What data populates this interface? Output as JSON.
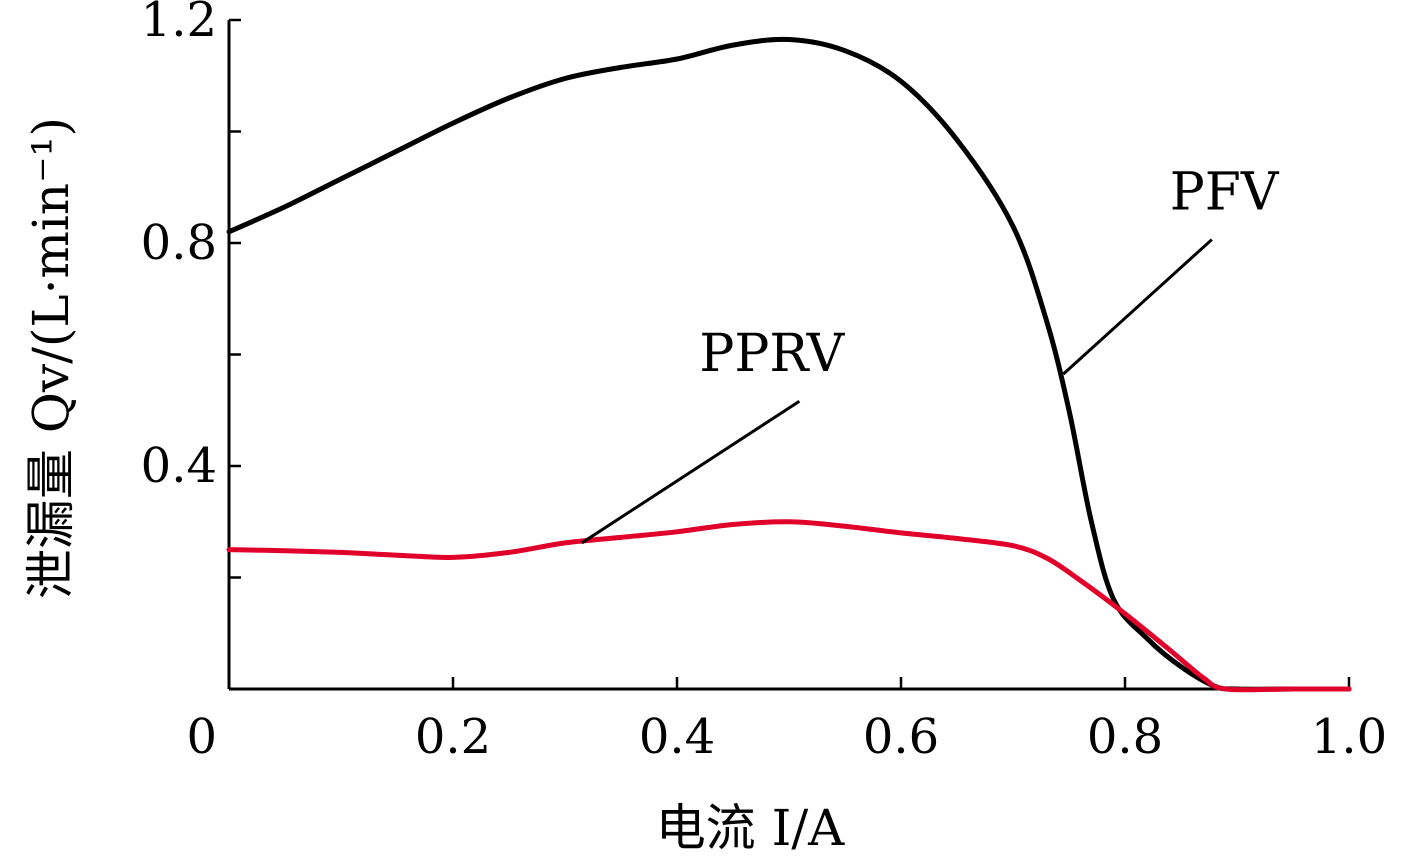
{
  "chart_data": {
    "type": "line",
    "xlabel": "电流 I/A",
    "ylabel": "泄漏量 Qv/(L·min⁻¹)",
    "xlim": [
      0,
      1.0
    ],
    "ylim": [
      0,
      1.2
    ],
    "x_ticks": [
      0,
      0.2,
      0.4,
      0.6,
      0.8,
      1.0
    ],
    "x_tick_labels": [
      "0",
      "0.2",
      "0.4",
      "0.6",
      "0.8",
      "1.0"
    ],
    "y_ticks": [
      0.2,
      0.4,
      0.6,
      0.8,
      1.0,
      1.2
    ],
    "y_tick_labels": [
      "",
      "0.4",
      "",
      "0.8",
      "",
      "1.2"
    ],
    "grid": false,
    "series": [
      {
        "name": "PFV",
        "color": "#000000",
        "points": [
          [
            0,
            0.82
          ],
          [
            0.05,
            0.865
          ],
          [
            0.1,
            0.915
          ],
          [
            0.15,
            0.965
          ],
          [
            0.2,
            1.015
          ],
          [
            0.25,
            1.06
          ],
          [
            0.3,
            1.095
          ],
          [
            0.35,
            1.115
          ],
          [
            0.4,
            1.13
          ],
          [
            0.45,
            1.155
          ],
          [
            0.5,
            1.165
          ],
          [
            0.55,
            1.145
          ],
          [
            0.6,
            1.09
          ],
          [
            0.65,
            0.985
          ],
          [
            0.7,
            0.83
          ],
          [
            0.73,
            0.66
          ],
          [
            0.75,
            0.5
          ],
          [
            0.77,
            0.3
          ],
          [
            0.79,
            0.16
          ],
          [
            0.82,
            0.09
          ],
          [
            0.85,
            0.04
          ],
          [
            0.88,
            0.005
          ],
          [
            0.9,
            0
          ],
          [
            0.95,
            0
          ],
          [
            1.0,
            0
          ]
        ]
      },
      {
        "name": "PPRV",
        "color": "#e0002a",
        "points": [
          [
            0,
            0.25
          ],
          [
            0.05,
            0.248
          ],
          [
            0.1,
            0.245
          ],
          [
            0.15,
            0.24
          ],
          [
            0.2,
            0.236
          ],
          [
            0.25,
            0.245
          ],
          [
            0.3,
            0.262
          ],
          [
            0.35,
            0.272
          ],
          [
            0.4,
            0.282
          ],
          [
            0.45,
            0.295
          ],
          [
            0.5,
            0.3
          ],
          [
            0.55,
            0.292
          ],
          [
            0.6,
            0.28
          ],
          [
            0.65,
            0.27
          ],
          [
            0.7,
            0.257
          ],
          [
            0.73,
            0.235
          ],
          [
            0.76,
            0.195
          ],
          [
            0.8,
            0.135
          ],
          [
            0.84,
            0.07
          ],
          [
            0.87,
            0.02
          ],
          [
            0.89,
            0
          ],
          [
            0.95,
            0
          ],
          [
            1.0,
            0
          ]
        ]
      }
    ],
    "annotations": [
      {
        "text": "PFV",
        "series": "PFV",
        "label_at": [
          0.84,
          0.86
        ],
        "points_to": [
          0.745,
          0.565
        ]
      },
      {
        "text": "PPRV",
        "series": "PPRV",
        "label_at": [
          0.42,
          0.57
        ],
        "points_to": [
          0.315,
          0.262
        ]
      }
    ]
  }
}
